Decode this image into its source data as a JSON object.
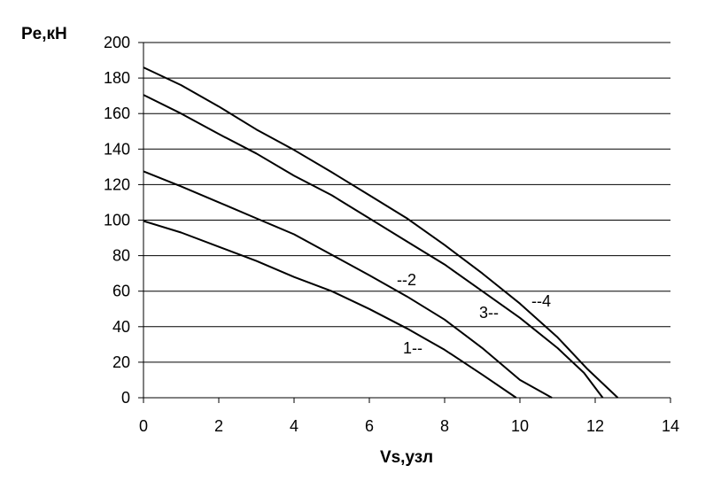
{
  "chart_data": {
    "type": "line",
    "xlabel": "Vs,узл",
    "ylabel": "Pe,кН",
    "xlim": [
      0,
      14
    ],
    "ylim": [
      0,
      200
    ],
    "x_ticks": [
      0,
      2,
      4,
      6,
      8,
      10,
      12,
      14
    ],
    "y_ticks": [
      0,
      20,
      40,
      60,
      80,
      100,
      120,
      140,
      160,
      180,
      200
    ],
    "grid": "horizontal",
    "line_color": "#000000",
    "series": [
      {
        "label": "1--",
        "points": [
          [
            0,
            99.5
          ],
          [
            1,
            93
          ],
          [
            2,
            85
          ],
          [
            3,
            77
          ],
          [
            4,
            68
          ],
          [
            5,
            60
          ],
          [
            6,
            50
          ],
          [
            7,
            39
          ],
          [
            8,
            27
          ],
          [
            9,
            13
          ],
          [
            9.9,
            0
          ]
        ]
      },
      {
        "label": "--2",
        "points": [
          [
            0,
            127.5
          ],
          [
            1,
            119
          ],
          [
            2,
            110
          ],
          [
            3,
            101
          ],
          [
            4,
            92
          ],
          [
            5,
            80.5
          ],
          [
            6,
            69
          ],
          [
            7,
            57
          ],
          [
            8,
            44
          ],
          [
            9,
            28
          ],
          [
            10,
            10
          ],
          [
            10.85,
            0
          ]
        ]
      },
      {
        "label": "3--",
        "points": [
          [
            0,
            170.5
          ],
          [
            1,
            160
          ],
          [
            2,
            148.5
          ],
          [
            3,
            137.5
          ],
          [
            4,
            125
          ],
          [
            5,
            114
          ],
          [
            6,
            101
          ],
          [
            7,
            88
          ],
          [
            8,
            75
          ],
          [
            9,
            60
          ],
          [
            10,
            45
          ],
          [
            11,
            28
          ],
          [
            11.7,
            14
          ],
          [
            12.2,
            0
          ]
        ]
      },
      {
        "label": "--4",
        "points": [
          [
            0,
            186
          ],
          [
            1,
            176
          ],
          [
            2,
            164
          ],
          [
            3,
            151
          ],
          [
            4,
            139.5
          ],
          [
            5,
            127
          ],
          [
            6,
            114
          ],
          [
            7,
            101
          ],
          [
            8,
            86
          ],
          [
            9,
            70
          ],
          [
            10,
            53
          ],
          [
            11,
            34
          ],
          [
            11.8,
            16
          ],
          [
            12.6,
            0
          ]
        ]
      }
    ]
  }
}
